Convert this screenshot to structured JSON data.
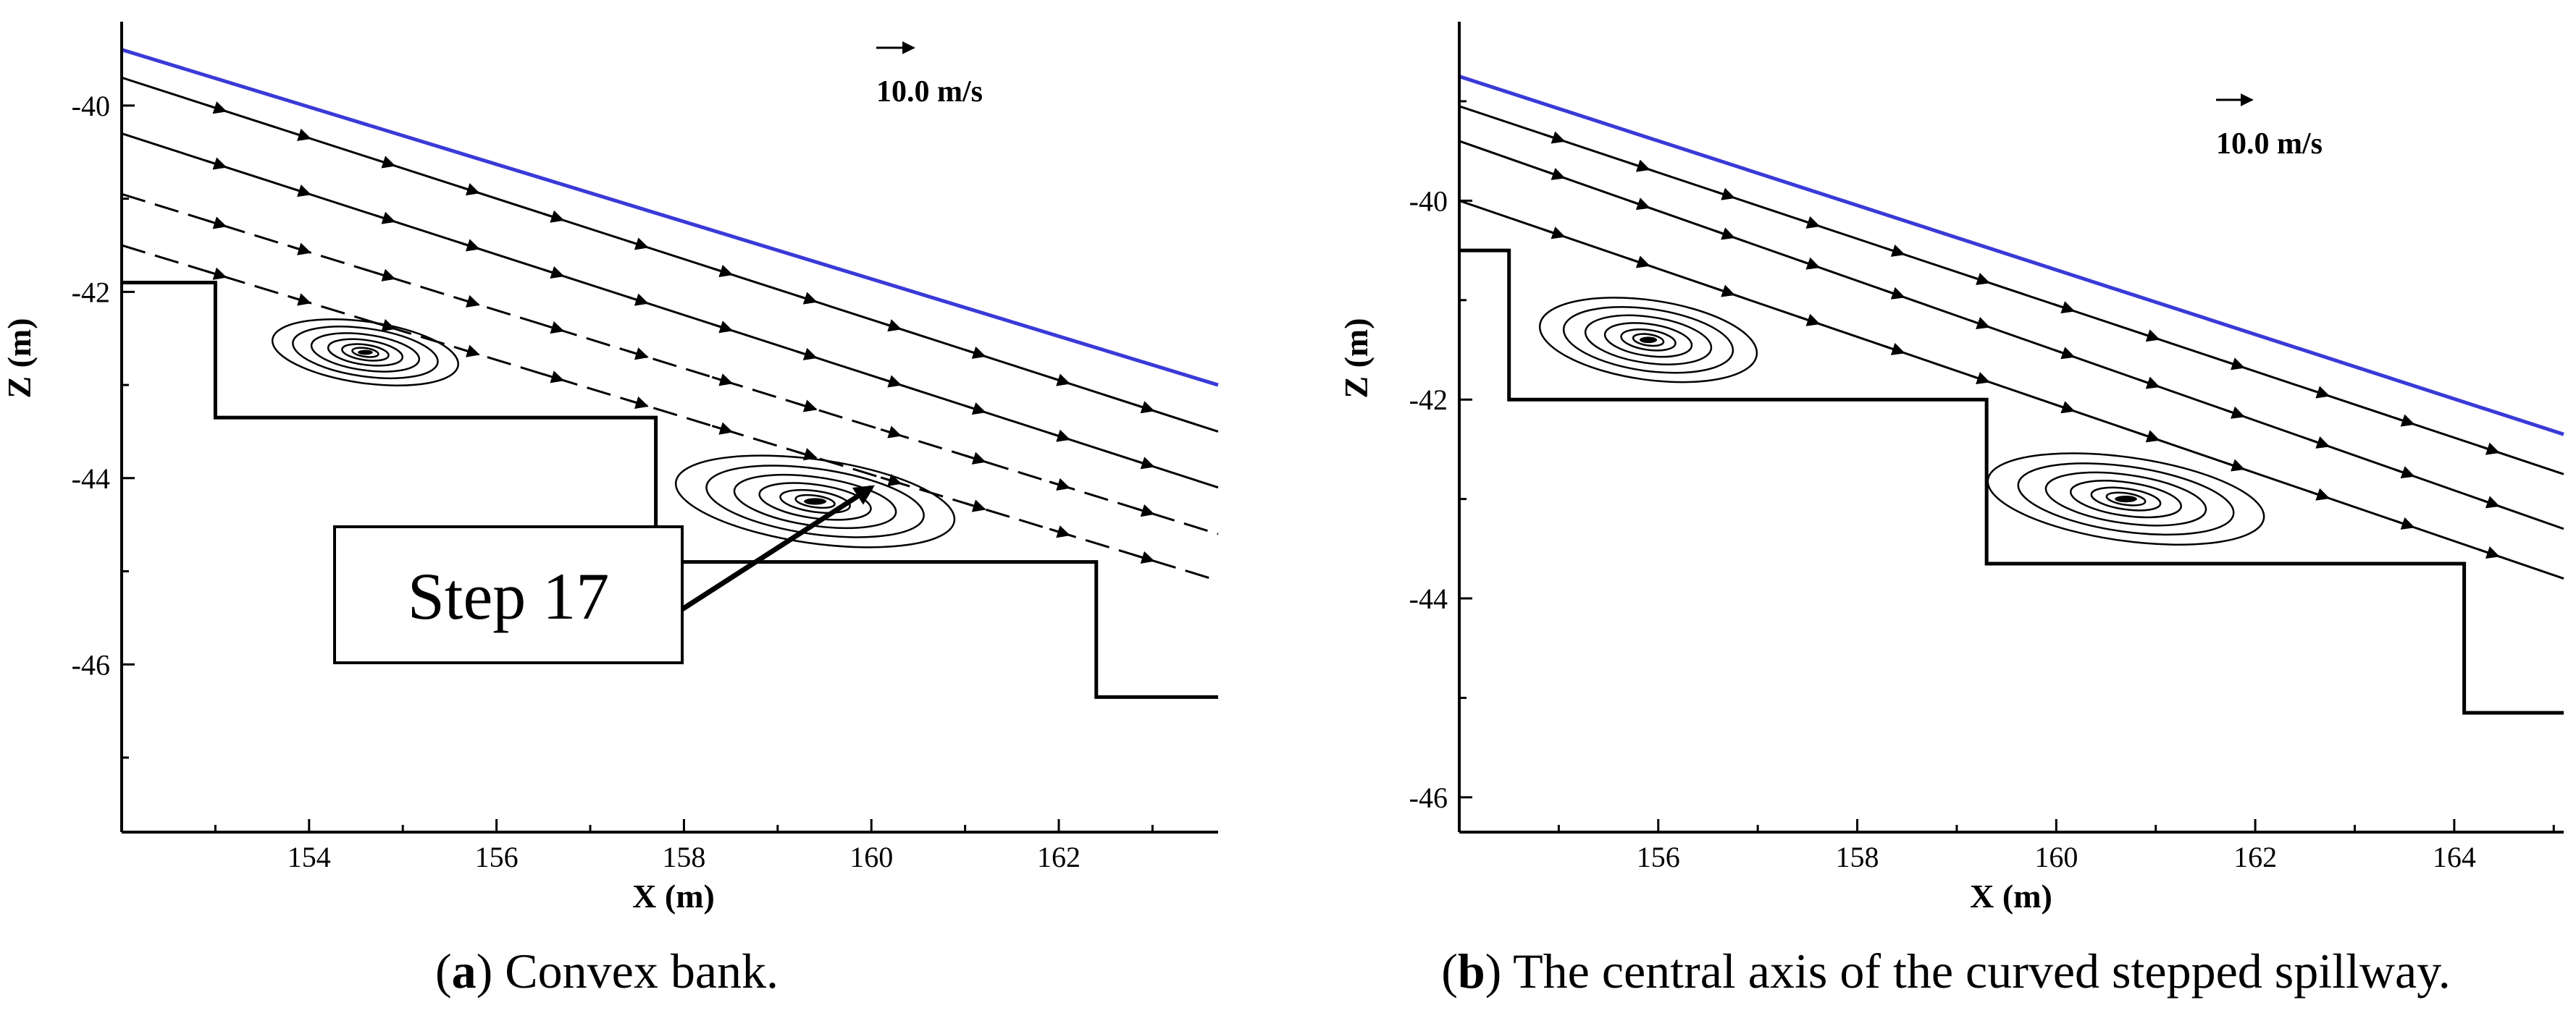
{
  "chart_data": [
    {
      "panel": "a",
      "type": "line",
      "subtype": "velocity-vector streamline plot",
      "caption_letter": "a",
      "caption_text": "Convex bank.",
      "xlabel": "X (m)",
      "ylabel": "Z (m)",
      "xlim": [
        152.0,
        163.7
      ],
      "ylim": [
        -47.8,
        -39.1
      ],
      "xticks": [
        154,
        156,
        158,
        160,
        162
      ],
      "yticks": [
        -40,
        -42,
        -44,
        -46
      ],
      "scale_vector_label": "10.0 m/s",
      "annotation": "Step 17",
      "annotation_target": [
        160.0,
        -44.1
      ],
      "free_surface": {
        "color": "#3a3ad8",
        "x": [
          152.0,
          163.7
        ],
        "z": [
          -39.4,
          -43.0
        ]
      },
      "step_profile": {
        "x": [
          152.0,
          153.0,
          153.0,
          157.7,
          157.7,
          162.4,
          162.4,
          163.7
        ],
        "z": [
          -41.9,
          -41.9,
          -43.35,
          -43.35,
          -44.9,
          -44.9,
          -46.35,
          -46.35
        ]
      },
      "streamlines": [
        {
          "x": [
            152.0,
            163.7
          ],
          "z": [
            -39.7,
            -43.5
          ]
        },
        {
          "x": [
            152.0,
            163.7
          ],
          "z": [
            -40.3,
            -44.1
          ]
        },
        {
          "x": [
            152.0,
            163.7
          ],
          "z": [
            -40.95,
            -44.6
          ]
        },
        {
          "x": [
            152.0,
            163.7
          ],
          "z": [
            -41.5,
            -45.1
          ]
        }
      ],
      "vortices": [
        {
          "cx": 154.6,
          "cz": -42.65,
          "rx": 1.0,
          "rz": 0.33
        },
        {
          "cx": 159.4,
          "cz": -44.25,
          "rx": 1.5,
          "rz": 0.45
        }
      ]
    },
    {
      "panel": "b",
      "type": "line",
      "subtype": "velocity-vector streamline plot",
      "caption_letter": "b",
      "caption_text": "The central axis of the curved stepped spillway.",
      "xlabel": "X (m)",
      "ylabel": "Z (m)",
      "xlim": [
        154.0,
        165.1
      ],
      "ylim": [
        -46.35,
        -38.2
      ],
      "xticks": [
        156,
        158,
        160,
        162,
        164
      ],
      "yticks": [
        -40,
        -42,
        -44,
        -46
      ],
      "scale_vector_label": "10.0 m/s",
      "free_surface": {
        "color": "#3a3ad8",
        "x": [
          154.0,
          165.1
        ],
        "z": [
          -38.75,
          -42.35
        ]
      },
      "step_profile": {
        "x": [
          154.0,
          154.5,
          154.5,
          159.3,
          159.3,
          164.1,
          164.1,
          165.1
        ],
        "z": [
          -40.5,
          -40.5,
          -42.0,
          -42.0,
          -43.65,
          -43.65,
          -45.15,
          -45.15
        ]
      },
      "streamlines": [
        {
          "x": [
            154.0,
            165.1
          ],
          "z": [
            -39.05,
            -42.75
          ]
        },
        {
          "x": [
            154.0,
            165.1
          ],
          "z": [
            -39.4,
            -43.3
          ]
        },
        {
          "x": [
            154.0,
            165.1
          ],
          "z": [
            -40.0,
            -43.8
          ]
        }
      ],
      "vortices": [
        {
          "cx": 155.9,
          "cz": -41.4,
          "rx": 1.1,
          "rz": 0.4
        },
        {
          "cx": 160.7,
          "cz": -43.0,
          "rx": 1.4,
          "rz": 0.42
        }
      ]
    }
  ]
}
